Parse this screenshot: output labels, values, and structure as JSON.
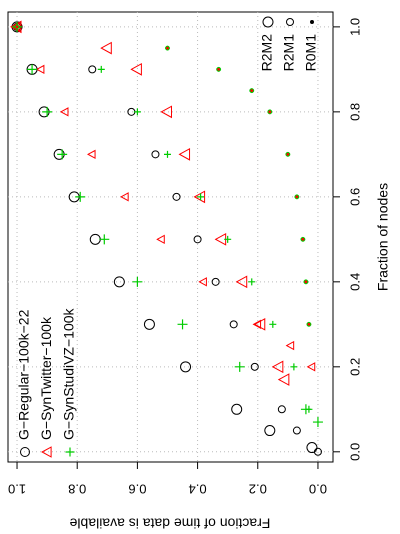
{
  "chart_data": {
    "type": "scatter",
    "x_label": "Fraction of nodes",
    "y_label": "Fraction of time data is available",
    "xlim": [
      -0.024,
      1.035
    ],
    "ylim": [
      -0.05,
      1.03
    ],
    "xticks": [
      {
        "value": 0,
        "label": "0.0"
      },
      0.2,
      0.4,
      0.6,
      0.8,
      {
        "value": 1,
        "label": "1.0"
      }
    ],
    "yticks": [
      {
        "value": 0,
        "label": "0.0"
      },
      0.2,
      0.4,
      0.6,
      0.8,
      {
        "value": 1,
        "label": "1.0"
      }
    ],
    "grid": true,
    "legend_datasets": [
      {
        "label": "G−Regular−100k−22",
        "color": "#000000",
        "marker": "circle"
      },
      {
        "label": "G−SynTwitter−100k",
        "color": "#ff0000",
        "marker": "triangle"
      },
      {
        "label": "G−SynStudiVZ−100k",
        "color": "#00cc00",
        "marker": "plus"
      }
    ],
    "legend_variants": [
      {
        "label": "R2M2",
        "size": 5
      },
      {
        "label": "R2M1",
        "size": 3.5
      },
      {
        "label": "R0M1",
        "size": 1.5
      }
    ],
    "series": [
      {
        "color": "#000000",
        "marker": "circle",
        "size": 5,
        "x": [
          0.01,
          0.05,
          0.1,
          0.2,
          0.3,
          0.4,
          0.5,
          0.6,
          0.7,
          0.8,
          0.9,
          1.0
        ],
        "values": [
          0.02,
          0.16,
          0.27,
          0.44,
          0.56,
          0.66,
          0.74,
          0.81,
          0.86,
          0.91,
          0.95,
          1.0
        ]
      },
      {
        "color": "#000000",
        "marker": "circle",
        "size": 3.5,
        "x": [
          0.0,
          0.05,
          0.1,
          0.2,
          0.3,
          0.4,
          0.5,
          0.6,
          0.7,
          0.8,
          0.9,
          1.0
        ],
        "values": [
          0.0,
          0.07,
          0.12,
          0.21,
          0.28,
          0.34,
          0.4,
          0.47,
          0.54,
          0.62,
          0.75,
          1.0
        ]
      },
      {
        "color": "#ff0000",
        "marker": "triangle",
        "size": 5,
        "x": [
          0.17,
          0.2,
          0.3,
          0.4,
          0.5,
          0.6,
          0.7,
          0.8,
          0.9,
          0.95,
          1.0
        ],
        "values": [
          0.11,
          0.13,
          0.19,
          0.25,
          0.32,
          0.39,
          0.44,
          0.5,
          0.6,
          0.7,
          1.0
        ]
      },
      {
        "color": "#ff0000",
        "marker": "triangle",
        "size": 3.5,
        "x": [
          0.2,
          0.25,
          0.3,
          0.4,
          0.5,
          0.6,
          0.7,
          0.8,
          0.9,
          1.0
        ],
        "values": [
          0.02,
          0.09,
          0.2,
          0.38,
          0.52,
          0.64,
          0.75,
          0.84,
          0.92,
          1.0
        ]
      },
      {
        "color": "#00cc00",
        "marker": "plus",
        "size": 5,
        "x": [
          0.07,
          0.1,
          0.2,
          0.3,
          0.4,
          0.5,
          0.6,
          0.7,
          0.8,
          0.9,
          1.0
        ],
        "values": [
          0.0,
          0.04,
          0.26,
          0.45,
          0.6,
          0.71,
          0.79,
          0.85,
          0.9,
          0.95,
          1.0
        ]
      },
      {
        "color": "#00cc00",
        "marker": "plus",
        "size": 3.5,
        "x": [
          0.1,
          0.2,
          0.3,
          0.4,
          0.5,
          0.6,
          0.7,
          0.8,
          0.9,
          1.0
        ],
        "values": [
          0.03,
          0.08,
          0.15,
          0.22,
          0.3,
          0.39,
          0.5,
          0.6,
          0.72,
          1.0
        ]
      },
      {
        "color": "#00cc00",
        "marker": "circle",
        "size": 2.2,
        "x": [
          0.3,
          0.4,
          0.5,
          0.6,
          0.7,
          0.8,
          0.85,
          0.9,
          0.95,
          1.0
        ],
        "values": [
          0.03,
          0.04,
          0.05,
          0.07,
          0.1,
          0.16,
          0.22,
          0.33,
          0.5,
          1.0
        ]
      },
      {
        "color": "#ff0000",
        "marker": "circle",
        "size": 1.2,
        "x": [
          0.3,
          0.4,
          0.5,
          0.6,
          0.7,
          0.8,
          0.85,
          0.9,
          0.95,
          1.0
        ],
        "values": [
          0.03,
          0.04,
          0.05,
          0.07,
          0.1,
          0.16,
          0.22,
          0.33,
          0.5,
          1.0
        ]
      }
    ]
  }
}
